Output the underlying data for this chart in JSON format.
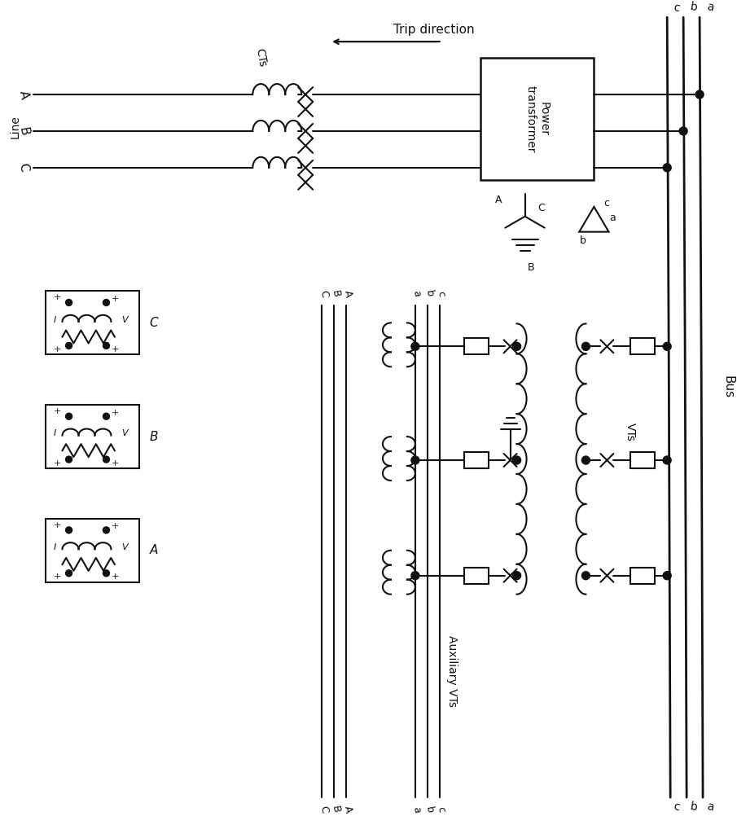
{
  "bg_color": "#ffffff",
  "line_color": "#111111",
  "title": "Trip direction",
  "power_transformer": "Power\ntransformer",
  "auxiliary_VTs": "Auxiliary VTs",
  "VTs": "VTs",
  "Bus": "Bus",
  "Line": "Line",
  "CTs": "CTs"
}
